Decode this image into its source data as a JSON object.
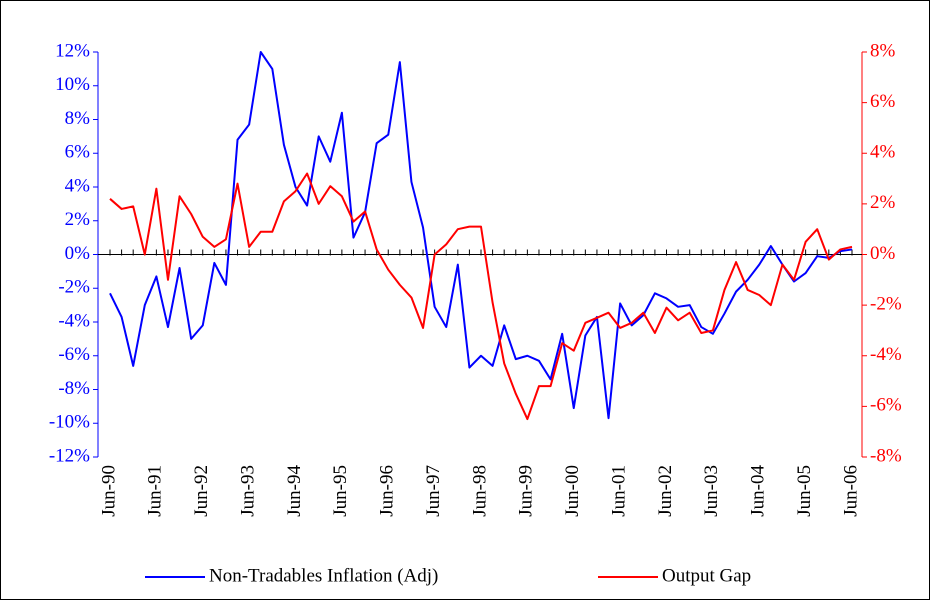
{
  "chart_data": {
    "type": "line",
    "categories": [
      "Jun-90",
      null,
      null,
      null,
      "Jun-91",
      null,
      null,
      null,
      "Jun-92",
      null,
      null,
      null,
      "Jun-93",
      null,
      null,
      null,
      "Jun-94",
      null,
      null,
      null,
      "Jun-95",
      null,
      null,
      null,
      "Jun-96",
      null,
      null,
      null,
      "Jun-97",
      null,
      null,
      null,
      "Jun-98",
      null,
      null,
      null,
      "Jun-99",
      null,
      null,
      null,
      "Jun-00",
      null,
      null,
      null,
      "Jun-01",
      null,
      null,
      null,
      "Jun-02",
      null,
      null,
      null,
      "Jun-03",
      null,
      null,
      null,
      "Jun-04",
      null,
      null,
      null,
      "Jun-05",
      null,
      null,
      null,
      "Jun-06"
    ],
    "series": [
      {
        "name": "Non-Tradables Inflation (Adj)",
        "color": "#0000ff",
        "values": [
          -2.3,
          -3.7,
          -6.6,
          -3.0,
          -1.3,
          -4.3,
          -0.8,
          -5.0,
          -4.2,
          -0.5,
          -1.8,
          6.8,
          7.7,
          12.0,
          11.0,
          6.5,
          4.0,
          2.9,
          7.0,
          5.5,
          8.4,
          1.0,
          2.5,
          6.6,
          7.1,
          11.4,
          4.3,
          1.6,
          -3.1,
          -4.3,
          -0.6,
          -6.7,
          -6.0,
          -6.6,
          -4.2,
          -6.2,
          -6.0,
          -6.3,
          -7.4,
          -4.7,
          -9.1,
          -4.8,
          -3.7,
          -9.7,
          -2.9,
          -4.2,
          -3.6,
          -2.3,
          -2.6,
          -3.1,
          -3.0,
          -4.3,
          -4.7,
          -3.5,
          -2.2,
          -1.5,
          -0.6,
          0.5,
          -0.6,
          -1.6,
          -1.1,
          -0.1,
          -0.2,
          0.2,
          0.3
        ]
      },
      {
        "name": "Output Gap",
        "color": "#ff0000",
        "axis": "y2",
        "values": [
          2.2,
          1.8,
          1.9,
          0.0,
          2.6,
          -1.0,
          2.3,
          1.6,
          0.7,
          0.3,
          0.6,
          2.8,
          0.3,
          0.9,
          0.9,
          2.1,
          2.5,
          3.2,
          2.0,
          2.7,
          2.3,
          1.3,
          1.7,
          0.2,
          -0.6,
          -1.2,
          -1.7,
          -2.9,
          0.0,
          0.4,
          1.0,
          1.1,
          1.1,
          -1.9,
          -4.3,
          -5.5,
          -6.5,
          -5.2,
          -5.2,
          -3.5,
          -3.8,
          -2.7,
          -2.5,
          -2.3,
          -2.9,
          -2.7,
          -2.3,
          -3.1,
          -2.1,
          -2.6,
          -2.3,
          -3.1,
          -3.0,
          -1.4,
          -0.3,
          -1.4,
          -1.6,
          -2.0,
          -0.4,
          -1.0,
          0.5,
          1.0,
          -0.2,
          0.2,
          0.3
        ]
      }
    ],
    "ylim": [
      -12,
      12
    ],
    "yticks": [
      {
        "value": -12,
        "label": "-12%"
      },
      {
        "value": -10,
        "label": "-10%"
      },
      {
        "value": -8,
        "label": "-8%"
      },
      {
        "value": -6,
        "label": "-6%"
      },
      {
        "value": -4,
        "label": "-4%"
      },
      {
        "value": -2,
        "label": "-2%"
      },
      {
        "value": 0,
        "label": "0%"
      },
      {
        "value": 2,
        "label": "2%"
      },
      {
        "value": 4,
        "label": "4%"
      },
      {
        "value": 6,
        "label": "6%"
      },
      {
        "value": 8,
        "label": "8%"
      },
      {
        "value": 10,
        "label": "10%"
      },
      {
        "value": 12,
        "label": "12%"
      }
    ],
    "y2lim": [
      -8,
      8
    ],
    "y2ticks": [
      {
        "value": -8,
        "label": "-8%"
      },
      {
        "value": -6,
        "label": "-6%"
      },
      {
        "value": -4,
        "label": "-4%"
      },
      {
        "value": -2,
        "label": "-2%"
      },
      {
        "value": 0,
        "label": "0%"
      },
      {
        "value": 2,
        "label": "2%"
      },
      {
        "value": 4,
        "label": "4%"
      },
      {
        "value": 6,
        "label": "6%"
      },
      {
        "value": 8,
        "label": "8%"
      }
    ],
    "grid": false,
    "legend": "bottom"
  }
}
